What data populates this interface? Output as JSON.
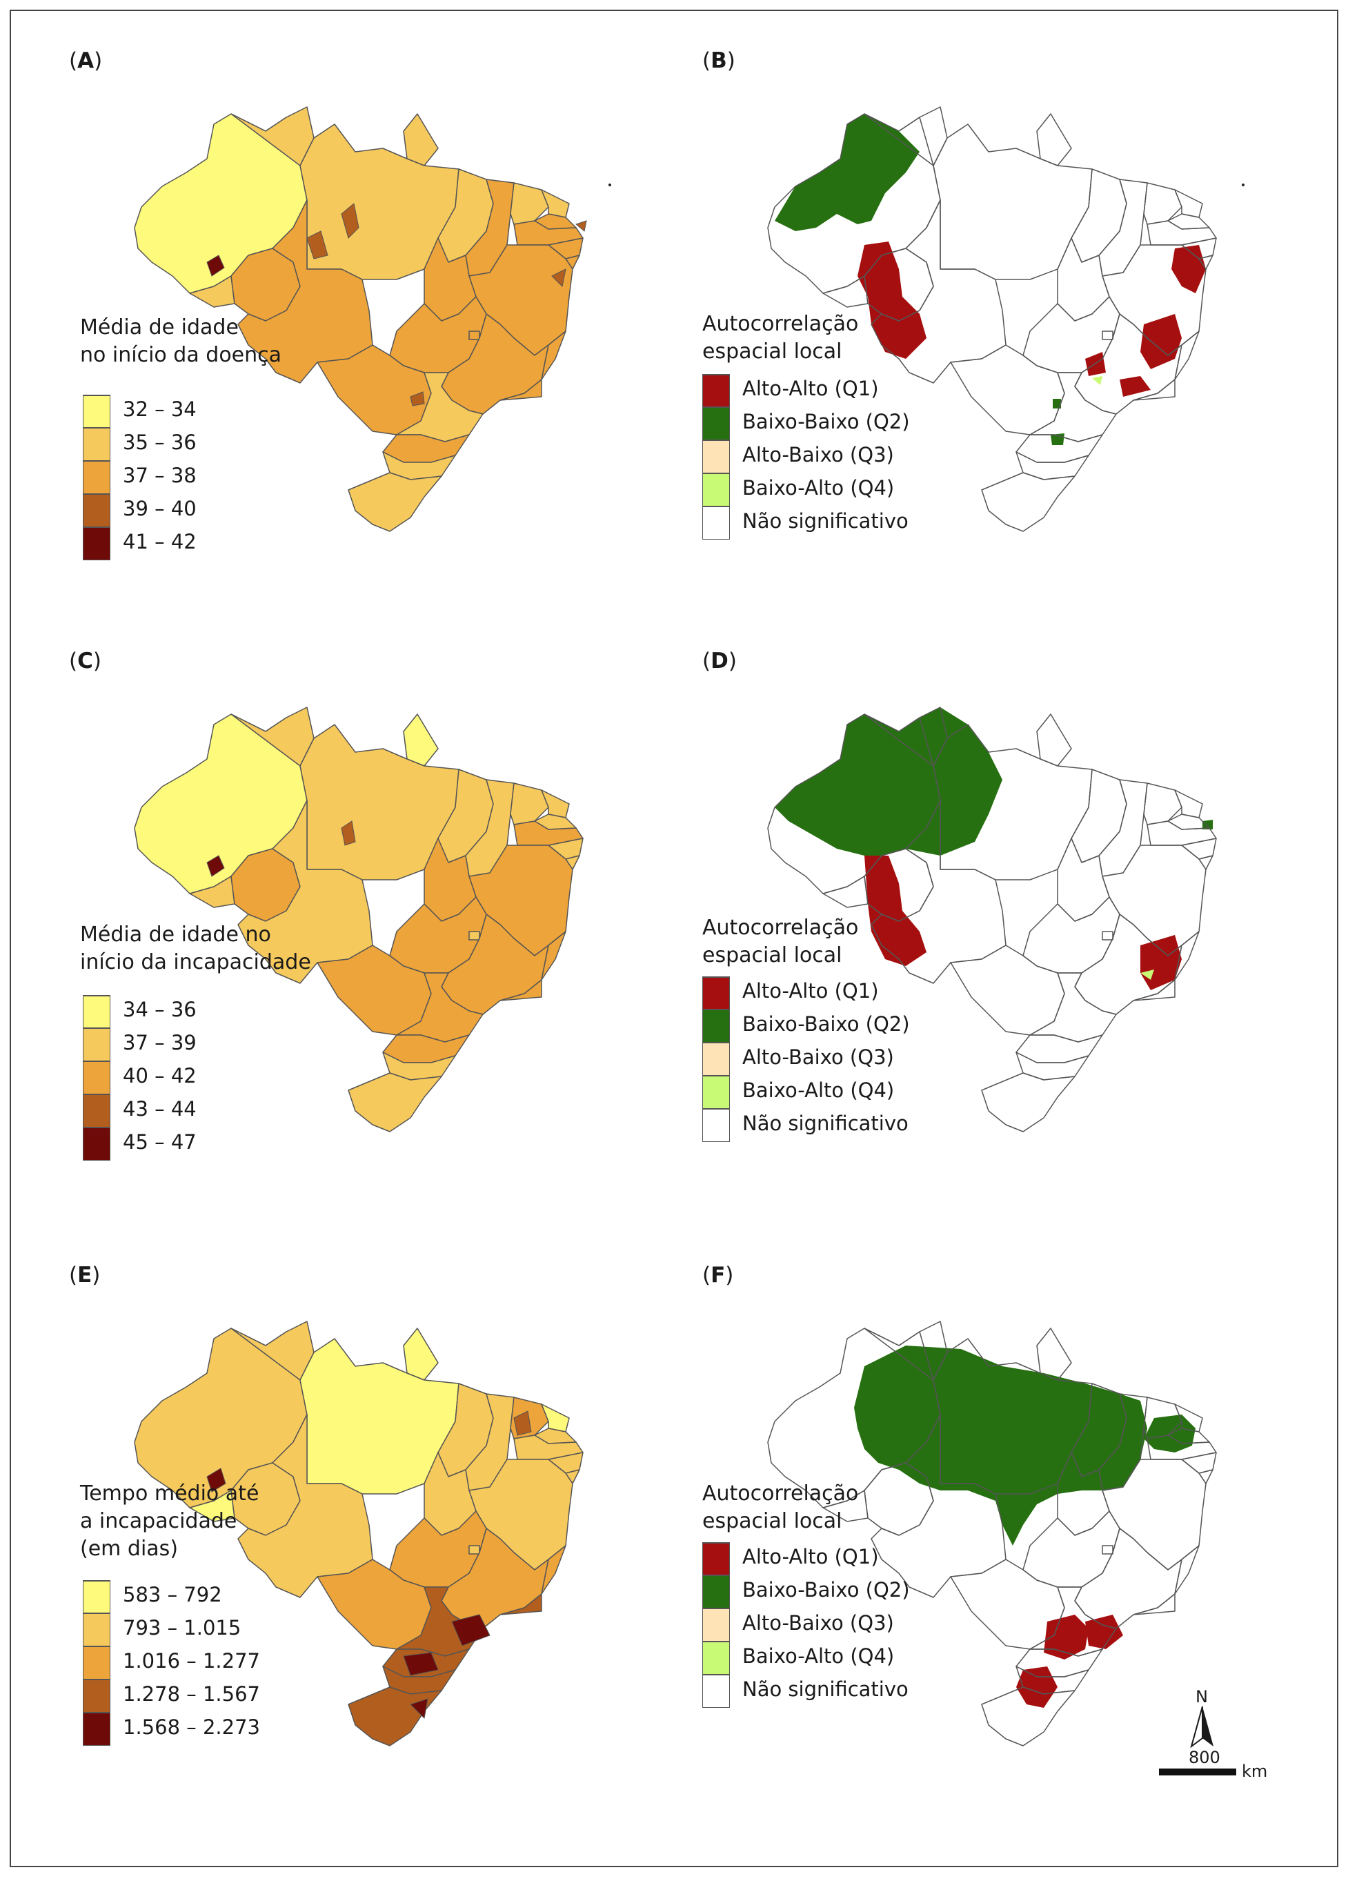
{
  "panels": [
    {
      "id": "A",
      "label": "A",
      "legend_title": "Média de idade\nno início da doença",
      "legend": [
        {
          "text": "32 – 34",
          "color": "#fdfa7c"
        },
        {
          "text": "35 – 36",
          "color": "#f6c95d"
        },
        {
          "text": "37 – 38",
          "color": "#eda43a"
        },
        {
          "text": "39 – 40",
          "color": "#b25e1e"
        },
        {
          "text": "41 – 42",
          "color": "#6e0a07"
        }
      ]
    },
    {
      "id": "B",
      "label": "B",
      "legend_title": "Autocorrelação\nespacial local",
      "legend": [
        {
          "text": "Alto-Alto (Q1)",
          "color": "#a50f0f"
        },
        {
          "text": "Baixo-Baixo (Q2)",
          "color": "#267011"
        },
        {
          "text": "Alto-Baixo (Q3)",
          "color": "#fde3b5"
        },
        {
          "text": "Baixo-Alto (Q4)",
          "color": "#c9fa75"
        },
        {
          "text": "Não significativo",
          "color": "#ffffff"
        }
      ]
    },
    {
      "id": "C",
      "label": "C",
      "legend_title": "Média de idade no\ninício da incapacidade",
      "legend": [
        {
          "text": "34 – 36",
          "color": "#fdfa7c"
        },
        {
          "text": "37 – 39",
          "color": "#f6c95d"
        },
        {
          "text": "40 – 42",
          "color": "#eda43a"
        },
        {
          "text": "43 – 44",
          "color": "#b25e1e"
        },
        {
          "text": "45 – 47",
          "color": "#6e0a07"
        }
      ]
    },
    {
      "id": "D",
      "label": "D",
      "legend_title": "Autocorrelação\nespacial local",
      "legend": [
        {
          "text": "Alto-Alto (Q1)",
          "color": "#a50f0f"
        },
        {
          "text": "Baixo-Baixo (Q2)",
          "color": "#267011"
        },
        {
          "text": "Alto-Baixo (Q3)",
          "color": "#fde3b5"
        },
        {
          "text": "Baixo-Alto (Q4)",
          "color": "#c9fa75"
        },
        {
          "text": "Não significativo",
          "color": "#ffffff"
        }
      ]
    },
    {
      "id": "E",
      "label": "E",
      "legend_title": "Tempo médio até\na incapacidade\n(em dias)",
      "legend": [
        {
          "text": "583 – 792",
          "color": "#fdfa7c"
        },
        {
          "text": "793 – 1.015",
          "color": "#f6c95d"
        },
        {
          "text": "1.016 – 1.277",
          "color": "#eda43a"
        },
        {
          "text": "1.278 – 1.567",
          "color": "#b25e1e"
        },
        {
          "text": "1.568 – 2.273",
          "color": "#6e0a07"
        }
      ]
    },
    {
      "id": "F",
      "label": "F",
      "legend_title": "Autocorrelação\nespacial local",
      "legend": [
        {
          "text": "Alto-Alto (Q1)",
          "color": "#a50f0f"
        },
        {
          "text": "Baixo-Baixo (Q2)",
          "color": "#267011"
        },
        {
          "text": "Alto-Baixo (Q3)",
          "color": "#fde3b5"
        },
        {
          "text": "Baixo-Alto (Q4)",
          "color": "#c9fa75"
        },
        {
          "text": "Não significativo",
          "color": "#ffffff"
        }
      ]
    }
  ],
  "scale_bar": {
    "north": "N",
    "distance": "800",
    "unit": "km"
  }
}
